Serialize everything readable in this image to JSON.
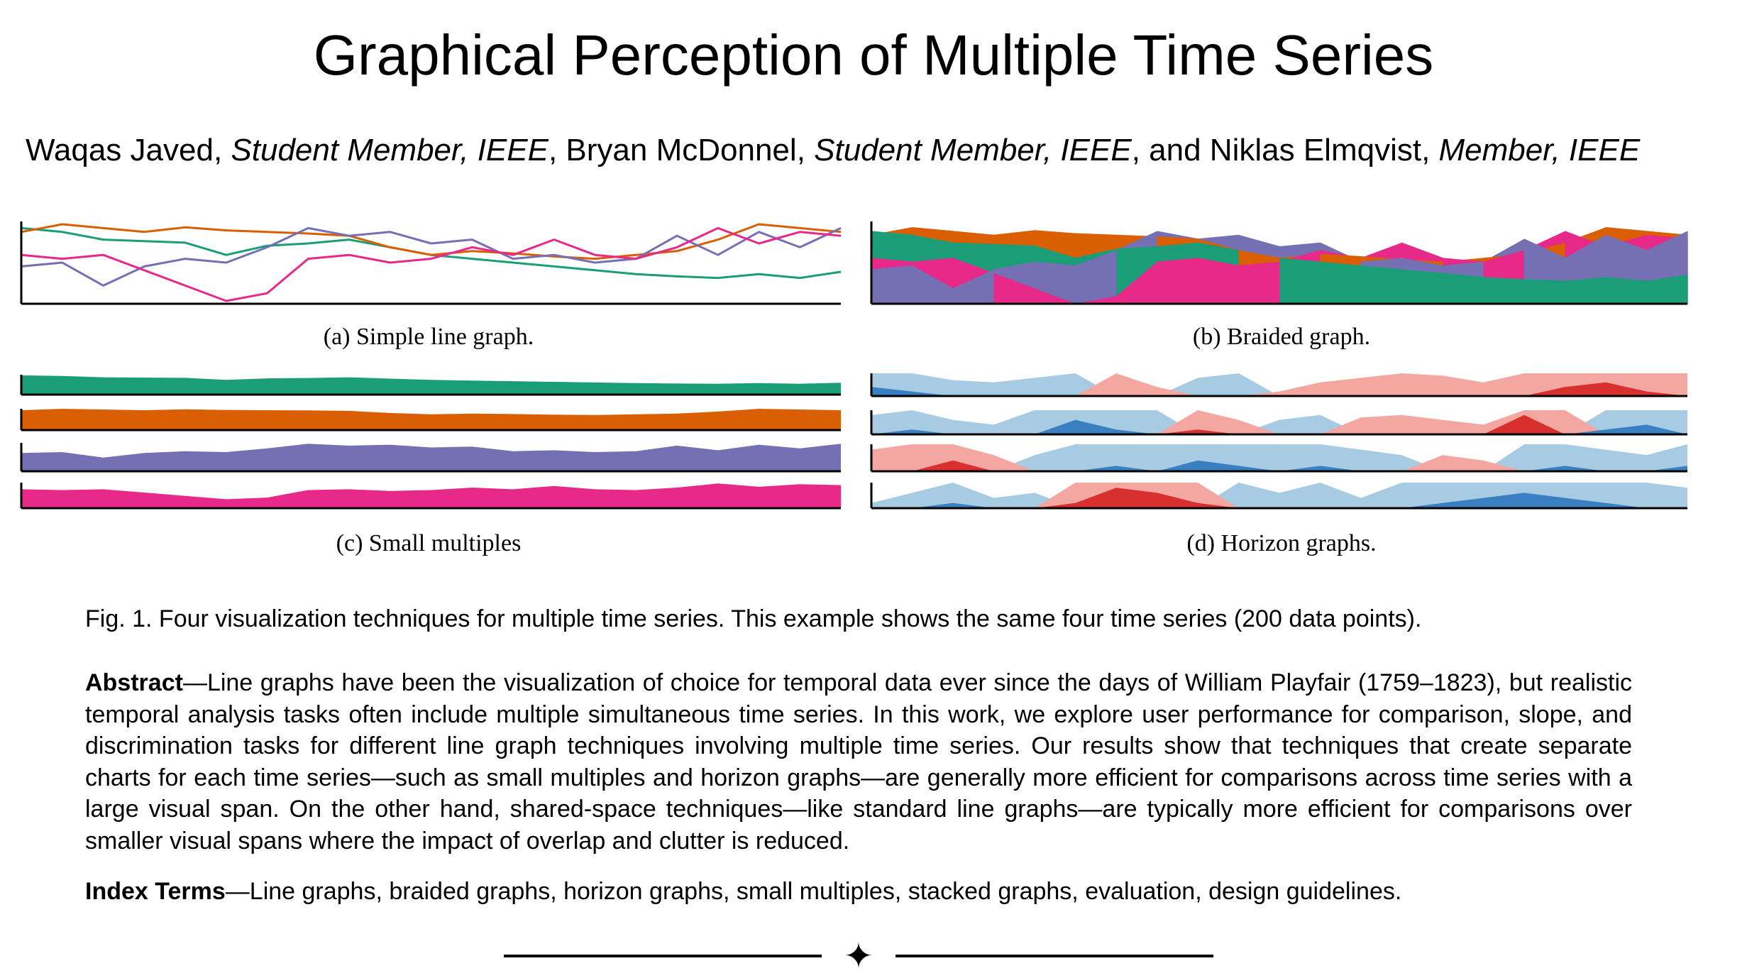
{
  "paper": {
    "title": "Graphical Perception of Multiple Time Series",
    "authors": [
      {
        "name": "Waqas Javed",
        "role": "Student Member, IEEE"
      },
      {
        "name": "Bryan McDonnel",
        "role": "Student Member, IEEE"
      },
      {
        "name": "Niklas Elmqvist",
        "role": "Member, IEEE"
      }
    ],
    "author_separators": [
      ", ",
      ", ",
      ", and ",
      ", ",
      ""
    ],
    "subfigures": {
      "a": "(a)  Simple line graph.",
      "b": "(b)  Braided graph.",
      "c": "(c)  Small multiples",
      "d": "(d)  Horizon graphs."
    },
    "figure_caption": "Fig. 1. Four visualization techniques for multiple time series. This example shows the same four time series (200 data points).",
    "abstract_label": "Abstract",
    "abstract_text": "—Line graphs have been the visualization of choice for temporal data ever since the days of William Playfair (1759–1823), but realistic temporal analysis tasks often include multiple simultaneous time series.  In this work, we explore user performance for comparison, slope, and discrimination tasks for different line graph techniques involving multiple time series.  Our results show that techniques that create separate charts for each time series—such as small multiples and horizon graphs—are generally more efficient for comparisons across time series with a large visual span. On the other hand, shared-space techniques—like standard line graphs—are typically more efficient for comparisons over smaller visual spans where the impact of overlap and clutter is reduced.",
    "index_label": "Index Terms",
    "index_text": "—Line graphs, braided graphs, horizon graphs, small multiples, stacked graphs, evaluation, design guidelines.",
    "divider_symbol": "✦"
  },
  "chart_data": [
    {
      "type": "line",
      "panel": "a",
      "ylim": [
        0,
        1
      ],
      "x": [
        0,
        5,
        10,
        15,
        20,
        25,
        30,
        35,
        40,
        45,
        50,
        55,
        60,
        65,
        70,
        75,
        80,
        85,
        90,
        95,
        100
      ],
      "series": [
        {
          "color": "#1b9e77",
          "values": [
            0.95,
            0.9,
            0.8,
            0.78,
            0.76,
            0.6,
            0.72,
            0.75,
            0.8,
            0.7,
            0.6,
            0.55,
            0.5,
            0.45,
            0.4,
            0.35,
            0.32,
            0.3,
            0.35,
            0.3,
            0.38
          ]
        },
        {
          "color": "#d95f02",
          "values": [
            0.9,
            1.0,
            0.95,
            0.9,
            0.96,
            0.92,
            0.9,
            0.88,
            0.85,
            0.7,
            0.6,
            0.65,
            0.62,
            0.58,
            0.55,
            0.6,
            0.65,
            0.8,
            1.0,
            0.95,
            0.9
          ]
        },
        {
          "color": "#7570b3",
          "values": [
            0.45,
            0.5,
            0.2,
            0.45,
            0.55,
            0.5,
            0.7,
            0.95,
            0.85,
            0.9,
            0.75,
            0.8,
            0.55,
            0.6,
            0.5,
            0.55,
            0.85,
            0.6,
            0.9,
            0.7,
            0.95
          ]
        },
        {
          "color": "#e7298a",
          "values": [
            0.6,
            0.55,
            0.6,
            0.4,
            0.2,
            0.0,
            0.1,
            0.55,
            0.6,
            0.5,
            0.55,
            0.7,
            0.6,
            0.8,
            0.6,
            0.55,
            0.7,
            0.95,
            0.75,
            0.9,
            0.85
          ]
        }
      ]
    },
    {
      "type": "area",
      "panel": "b",
      "ylim": [
        0,
        1
      ],
      "x": [
        0,
        5,
        10,
        15,
        20,
        25,
        30,
        35,
        40,
        45,
        50,
        55,
        60,
        65,
        70,
        75,
        80,
        85,
        90,
        95,
        100
      ],
      "series": [
        {
          "color": "#1b9e77",
          "values": [
            0.95,
            0.9,
            0.8,
            0.78,
            0.76,
            0.6,
            0.72,
            0.75,
            0.8,
            0.7,
            0.6,
            0.55,
            0.5,
            0.45,
            0.4,
            0.35,
            0.32,
            0.3,
            0.35,
            0.3,
            0.38
          ]
        },
        {
          "color": "#d95f02",
          "values": [
            0.9,
            1.0,
            0.95,
            0.9,
            0.96,
            0.92,
            0.9,
            0.88,
            0.85,
            0.7,
            0.6,
            0.65,
            0.62,
            0.58,
            0.55,
            0.6,
            0.65,
            0.8,
            1.0,
            0.95,
            0.9
          ]
        },
        {
          "color": "#7570b3",
          "values": [
            0.45,
            0.5,
            0.2,
            0.45,
            0.55,
            0.5,
            0.7,
            0.95,
            0.85,
            0.9,
            0.75,
            0.8,
            0.55,
            0.6,
            0.5,
            0.55,
            0.85,
            0.6,
            0.9,
            0.7,
            0.95
          ]
        },
        {
          "color": "#e7298a",
          "values": [
            0.6,
            0.55,
            0.6,
            0.4,
            0.2,
            0.0,
            0.1,
            0.55,
            0.6,
            0.5,
            0.55,
            0.7,
            0.6,
            0.8,
            0.6,
            0.55,
            0.7,
            0.95,
            0.75,
            0.9,
            0.85
          ]
        }
      ]
    },
    {
      "type": "area",
      "panel": "c",
      "ylim": [
        0,
        1
      ],
      "x": [
        0,
        5,
        10,
        15,
        20,
        25,
        30,
        35,
        40,
        45,
        50,
        55,
        60,
        65,
        70,
        75,
        80,
        85,
        90,
        95,
        100
      ],
      "series": [
        {
          "color": "#1b9e77",
          "values": [
            0.95,
            0.9,
            0.8,
            0.78,
            0.76,
            0.6,
            0.72,
            0.75,
            0.8,
            0.7,
            0.6,
            0.55,
            0.5,
            0.45,
            0.4,
            0.35,
            0.32,
            0.3,
            0.35,
            0.3,
            0.38
          ]
        },
        {
          "color": "#d95f02",
          "values": [
            0.9,
            1.0,
            0.95,
            0.9,
            0.96,
            0.92,
            0.9,
            0.88,
            0.85,
            0.7,
            0.6,
            0.65,
            0.62,
            0.58,
            0.55,
            0.6,
            0.65,
            0.8,
            1.0,
            0.95,
            0.9
          ]
        },
        {
          "color": "#7570b3",
          "values": [
            0.45,
            0.5,
            0.2,
            0.45,
            0.55,
            0.5,
            0.7,
            0.95,
            0.85,
            0.9,
            0.75,
            0.8,
            0.55,
            0.6,
            0.5,
            0.55,
            0.85,
            0.6,
            0.9,
            0.7,
            0.95
          ]
        },
        {
          "color": "#e7298a",
          "values": [
            0.6,
            0.55,
            0.6,
            0.4,
            0.2,
            0.0,
            0.1,
            0.55,
            0.6,
            0.5,
            0.55,
            0.7,
            0.6,
            0.8,
            0.6,
            0.55,
            0.7,
            0.95,
            0.75,
            0.9,
            0.85
          ]
        }
      ]
    },
    {
      "type": "area",
      "panel": "d",
      "ylim": [
        -1,
        1
      ],
      "horizon_bands": 2,
      "colors": {
        "pos_light": "#f4a7a0",
        "pos_dark": "#d7302f",
        "neg_light": "#a6cbe3",
        "neg_dark": "#3a7fc1"
      },
      "x": [
        0,
        5,
        10,
        15,
        20,
        25,
        30,
        35,
        40,
        45,
        50,
        55,
        60,
        65,
        70,
        75,
        80,
        85,
        90,
        95,
        100
      ],
      "series": [
        {
          "values": [
            -0.7,
            -0.6,
            -0.35,
            -0.3,
            -0.4,
            -0.5,
            0.5,
            0.2,
            -0.4,
            -0.5,
            0.1,
            0.3,
            0.4,
            0.5,
            0.45,
            0.3,
            0.5,
            0.7,
            0.8,
            0.6,
            0.5
          ]
        },
        {
          "values": [
            -0.4,
            -0.6,
            -0.3,
            -0.2,
            -0.5,
            -0.8,
            -0.6,
            -0.5,
            0.6,
            0.3,
            -0.3,
            -0.4,
            0.35,
            0.4,
            0.3,
            0.2,
            0.9,
            0.5,
            -0.6,
            -0.7,
            -0.5
          ]
        },
        {
          "values": [
            0.4,
            0.5,
            0.7,
            0.3,
            -0.3,
            -0.5,
            -0.6,
            -0.5,
            -0.7,
            -0.6,
            -0.5,
            -0.6,
            -0.4,
            -0.3,
            0.3,
            0.2,
            -0.5,
            -0.6,
            -0.4,
            -0.3,
            -0.6
          ]
        },
        {
          "values": [
            -0.1,
            -0.3,
            -0.6,
            -0.2,
            -0.3,
            0.6,
            0.9,
            0.8,
            0.6,
            -0.5,
            -0.3,
            -0.5,
            -0.2,
            -0.5,
            -0.6,
            -0.7,
            -0.8,
            -0.7,
            -0.6,
            -0.5,
            -0.4
          ]
        }
      ]
    }
  ]
}
